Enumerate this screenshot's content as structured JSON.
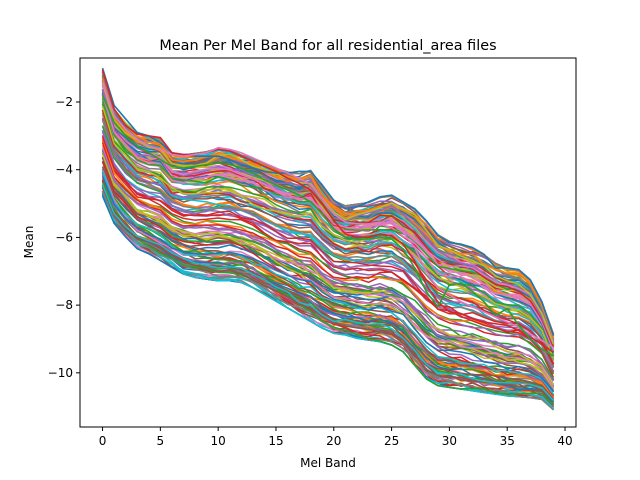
{
  "chart_data": {
    "type": "line",
    "title": "Mean Per Mel Band for all residential_area files",
    "xlabel": "Mel Band",
    "ylabel": "Mean",
    "xlim": [
      -1.95,
      40.95
    ],
    "ylim": [
      -11.6,
      -0.7
    ],
    "xticks": [
      0,
      5,
      10,
      15,
      20,
      25,
      30,
      35,
      40
    ],
    "yticks": [
      -10,
      -8,
      -6,
      -4,
      -2
    ],
    "grid": false,
    "legend": "none",
    "x": [
      0,
      1,
      2,
      3,
      4,
      5,
      6,
      7,
      8,
      9,
      10,
      11,
      12,
      13,
      14,
      15,
      16,
      17,
      18,
      19,
      20,
      21,
      22,
      23,
      24,
      25,
      26,
      27,
      28,
      29,
      30,
      31,
      32,
      33,
      34,
      35,
      36,
      37,
      38,
      39
    ],
    "line_count": 160,
    "band": {
      "upper": [
        -1.0,
        -2.2,
        -2.6,
        -2.9,
        -3.0,
        -3.05,
        -3.5,
        -3.55,
        -3.5,
        -3.45,
        -3.35,
        -3.4,
        -3.55,
        -3.65,
        -3.8,
        -3.95,
        -4.05,
        -4.1,
        -4.0,
        -4.5,
        -4.9,
        -5.05,
        -5.0,
        -4.95,
        -4.8,
        -4.75,
        -4.95,
        -5.15,
        -5.5,
        -5.9,
        -6.1,
        -6.2,
        -6.3,
        -6.5,
        -6.75,
        -6.9,
        -6.95,
        -7.25,
        -7.9,
        -8.85
      ],
      "lower": [
        -4.8,
        -5.6,
        -6.0,
        -6.35,
        -6.5,
        -6.7,
        -6.9,
        -7.1,
        -7.2,
        -7.25,
        -7.3,
        -7.3,
        -7.35,
        -7.5,
        -7.7,
        -7.9,
        -8.1,
        -8.3,
        -8.5,
        -8.7,
        -8.85,
        -8.9,
        -9.0,
        -9.05,
        -9.1,
        -9.2,
        -9.4,
        -9.8,
        -10.2,
        -10.4,
        -10.45,
        -10.5,
        -10.55,
        -10.6,
        -10.65,
        -10.7,
        -10.72,
        -10.75,
        -10.8,
        -11.1
      ]
    },
    "highlight_series": [
      {
        "name": "",
        "color": "#1f77b4",
        "values": [
          -1.0,
          -2.1,
          -2.5,
          -2.9,
          -3.0,
          -3.2,
          -3.5,
          -3.55,
          -3.6,
          -3.6,
          -3.6,
          -3.7,
          -3.85,
          -3.95,
          -4.05,
          -4.1,
          -4.1,
          -4.05,
          -4.05,
          -4.45,
          -4.9,
          -5.15,
          -5.1,
          -4.95,
          -4.8,
          -4.75,
          -4.95,
          -5.15,
          -5.5,
          -5.95,
          -6.15,
          -6.2,
          -6.3,
          -6.5,
          -6.9,
          -6.9,
          -6.95,
          -7.25,
          -7.9,
          -8.9
        ]
      },
      {
        "name": "",
        "color": "#d62728",
        "values": [
          -1.05,
          -2.2,
          -2.7,
          -2.95,
          -3.0,
          -3.05,
          -3.5,
          -3.55,
          -3.55,
          -3.5,
          -3.4,
          -3.45,
          -3.6,
          -3.75,
          -3.9,
          -4.05,
          -4.25,
          -4.4,
          -4.6,
          -5.0,
          -5.5,
          -5.9,
          -6.0,
          -6.0,
          -5.9,
          -5.95,
          -6.2,
          -6.7,
          -7.4,
          -7.9,
          -8.2,
          -8.25,
          -8.4,
          -8.5,
          -8.55,
          -8.6,
          -8.75,
          -8.95,
          -9.15,
          -9.4
        ]
      },
      {
        "name": "",
        "color": "#e377c2",
        "values": [
          -1.4,
          -2.4,
          -2.8,
          -3.1,
          -3.3,
          -3.4,
          -3.55,
          -3.6,
          -3.55,
          -3.5,
          -3.35,
          -3.4,
          -3.5,
          -3.65,
          -3.8,
          -3.95,
          -4.1,
          -4.25,
          -4.45,
          -4.85,
          -5.3,
          -5.55,
          -5.6,
          -5.6,
          -5.55,
          -5.6,
          -5.85,
          -6.3,
          -7.0,
          -7.5,
          -7.7,
          -7.9,
          -8.05,
          -8.2,
          -8.35,
          -8.5,
          -8.65,
          -8.85,
          -9.05,
          -9.25
        ]
      },
      {
        "name": "",
        "color": "#2ca02c",
        "values": [
          -1.8,
          -2.6,
          -3.0,
          -3.3,
          -3.5,
          -3.7,
          -3.9,
          -3.95,
          -3.9,
          -3.85,
          -3.8,
          -3.85,
          -3.95,
          -4.1,
          -4.3,
          -4.45,
          -4.6,
          -4.75,
          -4.95,
          -5.3,
          -5.75,
          -6.0,
          -6.05,
          -6.05,
          -6.0,
          -6.05,
          -6.35,
          -6.9,
          -7.6,
          -8.05,
          -7.4,
          -7.35,
          -7.6,
          -7.9,
          -8.3,
          -8.1,
          -8.6,
          -9.0,
          -9.3,
          -9.5
        ]
      }
    ]
  }
}
